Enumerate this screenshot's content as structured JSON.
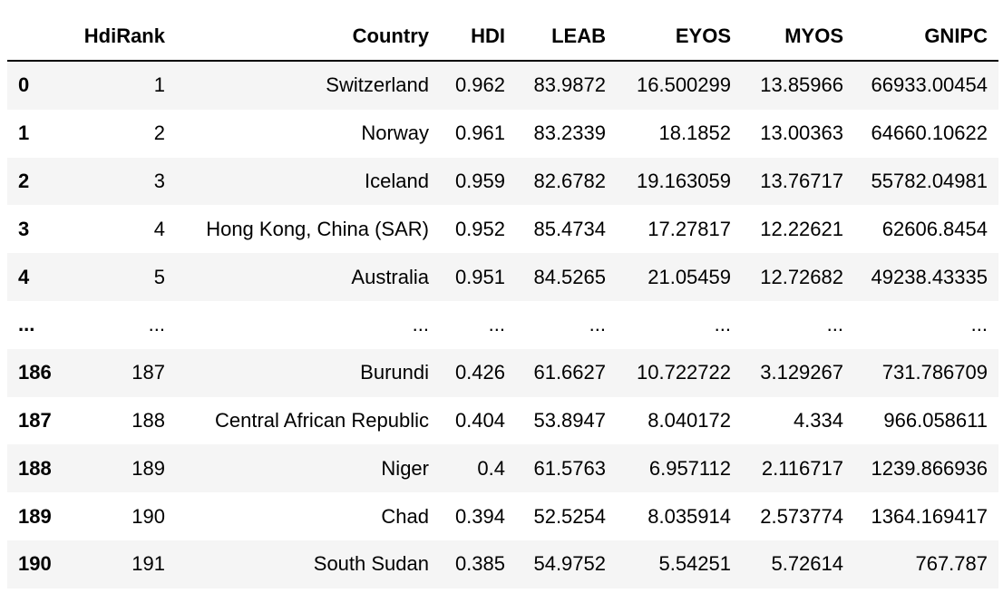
{
  "table": {
    "columns": [
      "",
      "HdiRank",
      "Country",
      "HDI",
      "LEAB",
      "EYOS",
      "MYOS",
      "GNIPC"
    ],
    "rows": [
      [
        "0",
        "1",
        "Switzerland",
        "0.962",
        "83.9872",
        "16.500299",
        "13.85966",
        "66933.00454"
      ],
      [
        "1",
        "2",
        "Norway",
        "0.961",
        "83.2339",
        "18.1852",
        "13.00363",
        "64660.10622"
      ],
      [
        "2",
        "3",
        "Iceland",
        "0.959",
        "82.6782",
        "19.163059",
        "13.76717",
        "55782.04981"
      ],
      [
        "3",
        "4",
        "Hong Kong, China (SAR)",
        "0.952",
        "85.4734",
        "17.27817",
        "12.22621",
        "62606.8454"
      ],
      [
        "4",
        "5",
        "Australia",
        "0.951",
        "84.5265",
        "21.05459",
        "12.72682",
        "49238.43335"
      ],
      [
        "...",
        "...",
        "...",
        "...",
        "...",
        "...",
        "...",
        "..."
      ],
      [
        "186",
        "187",
        "Burundi",
        "0.426",
        "61.6627",
        "10.722722",
        "3.129267",
        "731.786709"
      ],
      [
        "187",
        "188",
        "Central African Republic",
        "0.404",
        "53.8947",
        "8.040172",
        "4.334",
        "966.058611"
      ],
      [
        "188",
        "189",
        "Niger",
        "0.4",
        "61.5763",
        "6.957112",
        "2.116717",
        "1239.866936"
      ],
      [
        "189",
        "190",
        "Chad",
        "0.394",
        "52.5254",
        "8.035914",
        "2.573774",
        "1364.169417"
      ],
      [
        "190",
        "191",
        "South Sudan",
        "0.385",
        "54.9752",
        "5.54251",
        "5.72614",
        "767.787"
      ]
    ]
  }
}
